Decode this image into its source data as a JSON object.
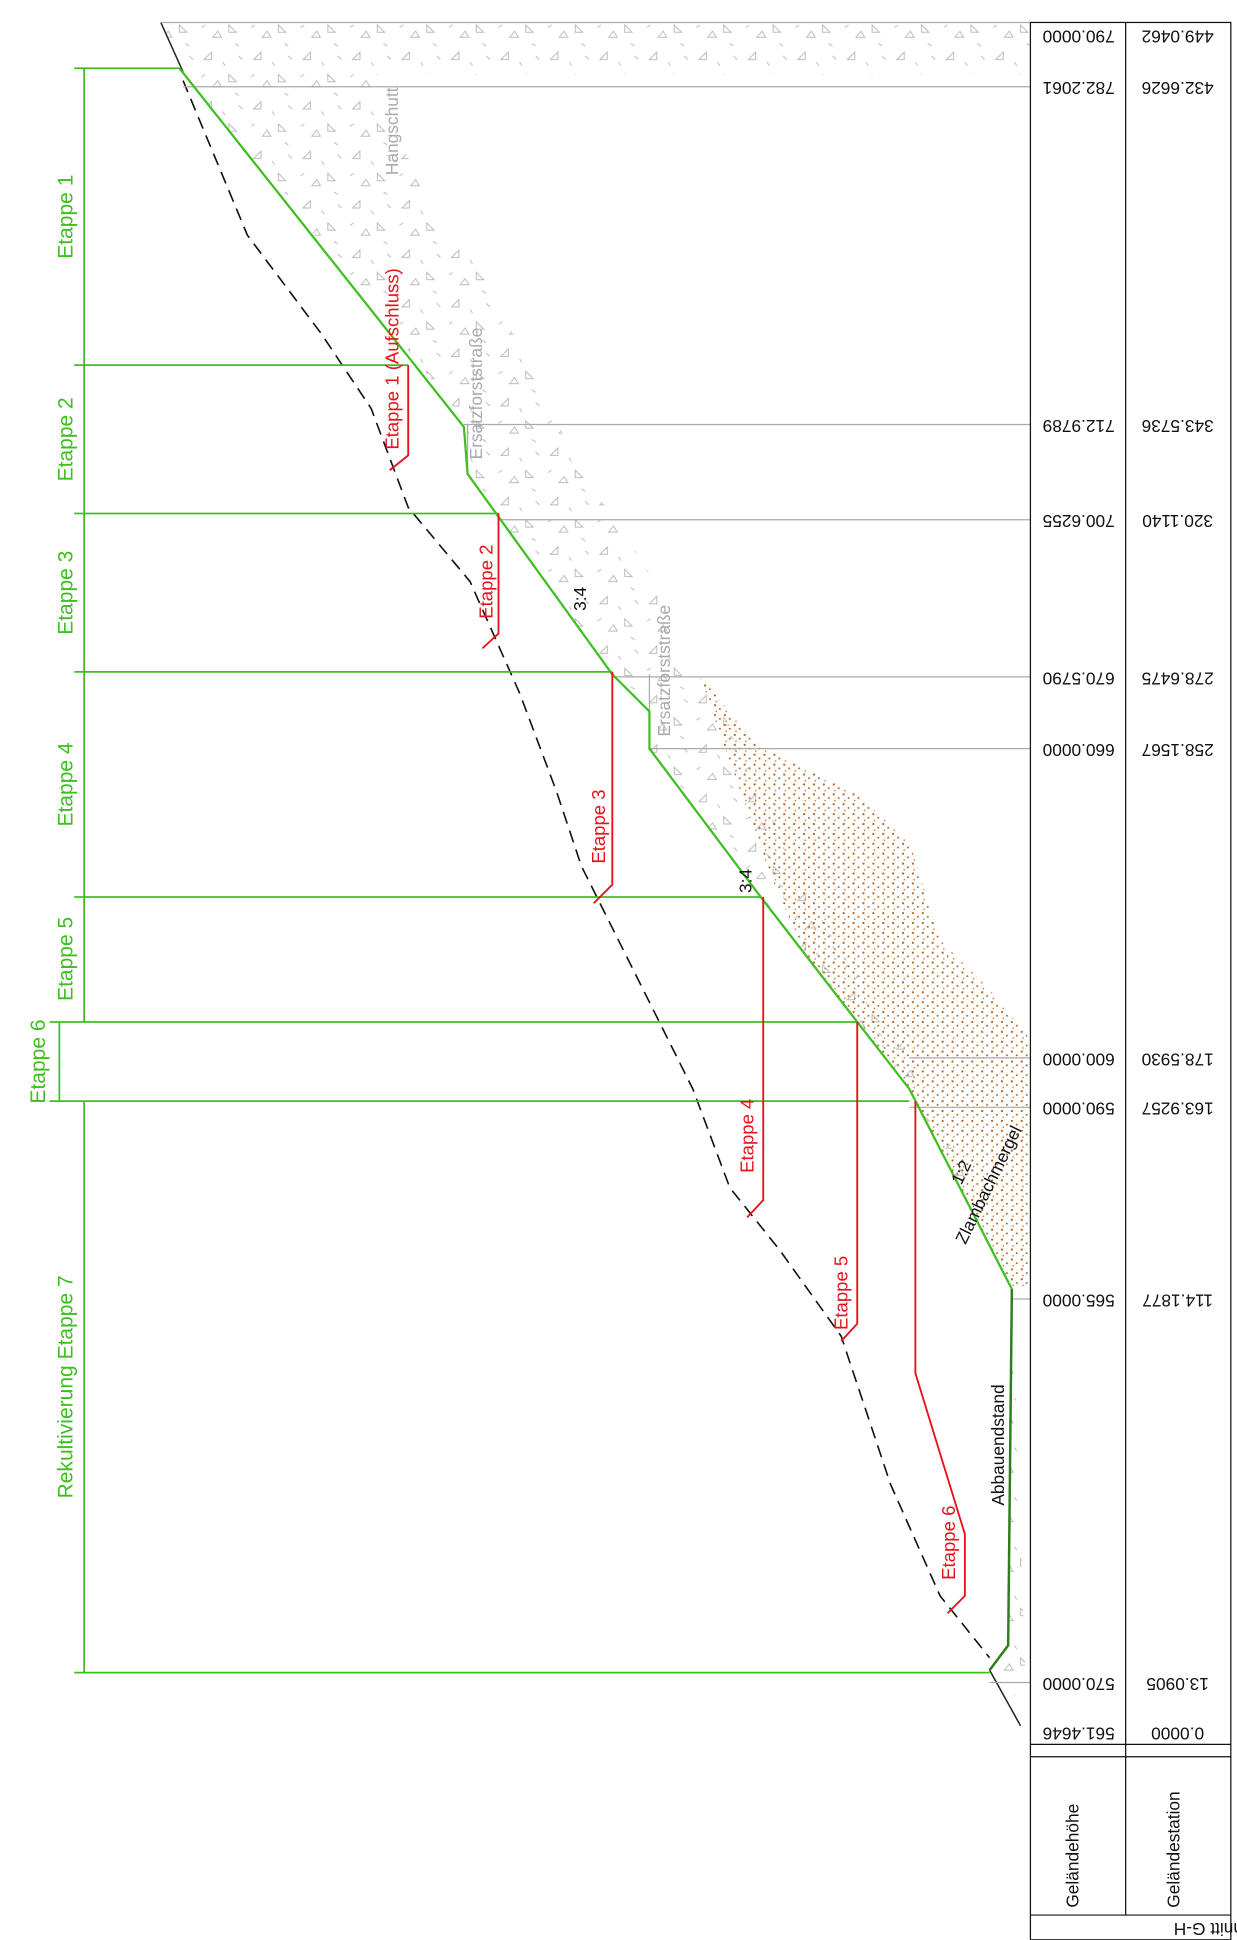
{
  "stages": [
    "Etappe 1",
    "Etappe 2",
    "Etappe 3",
    "Etappe 4",
    "Etappe 5",
    "Etappe 6",
    "Rekultivierung Etappe 7"
  ],
  "cuts": [
    "Etappe 1 (Aufschluss)",
    "Etappe 2",
    "Etappe 3",
    "Etappe 4",
    "Etappe 5",
    "Etappe 6"
  ],
  "labels": {
    "hangschutt": "Hangschutt",
    "road_1": "Ersatzforststraße",
    "road_2": "Ersatzforststraße",
    "slope_1": "3:4",
    "slope_2": "3:4",
    "slope_3": "1:2",
    "marl": "Zlambachmergel",
    "final": "Abbauendstand"
  },
  "table": {
    "title": "Schnitt G-H",
    "row_labels": [
      "Geländehöhe",
      "Geländestation"
    ],
    "columns": [
      {
        "height": "790.0000",
        "station": "449.0462"
      },
      {
        "height": "782.2061",
        "station": "432.6626"
      },
      {
        "height": "712.9789",
        "station": "343.5736"
      },
      {
        "height": "700.6255",
        "station": "320.1140"
      },
      {
        "height": "670.5790",
        "station": "278.6475"
      },
      {
        "height": "660.0000",
        "station": "258.1567"
      },
      {
        "height": "600.0000",
        "station": "178.5930"
      },
      {
        "height": "590.0000",
        "station": "163.9257"
      },
      {
        "height": "565.0000",
        "station": "114.1877"
      },
      {
        "height": "570.0000",
        "station": "13.0905"
      },
      {
        "height": "561.4646",
        "station": "0.0000"
      }
    ]
  }
}
